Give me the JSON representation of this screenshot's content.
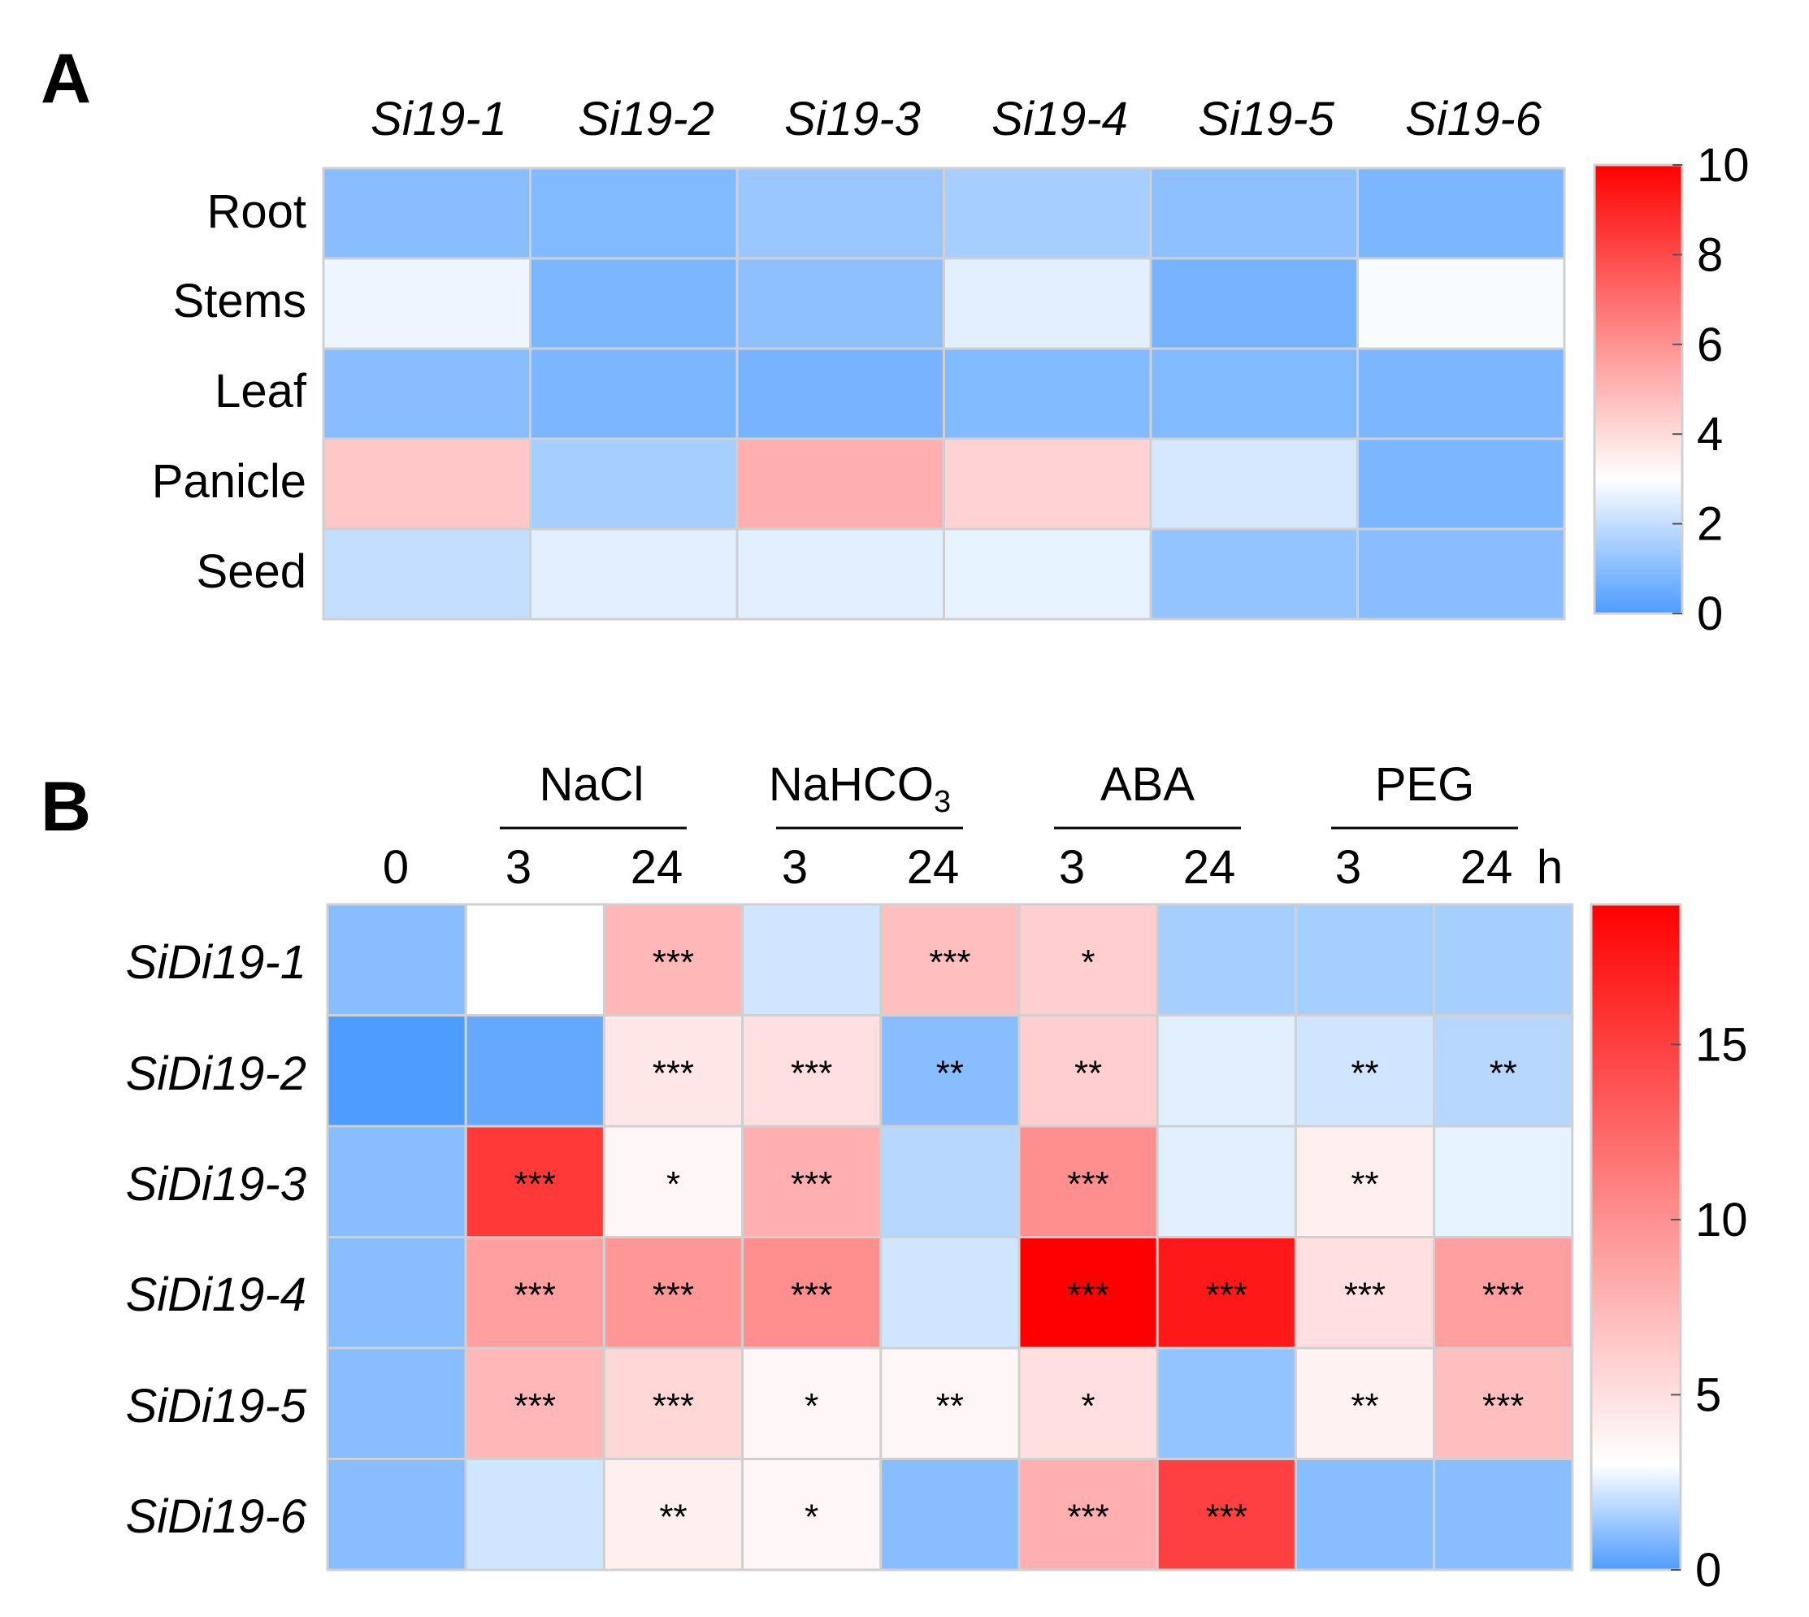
{
  "figure": {
    "panel_a_letter": "A",
    "panel_b_letter": "B"
  },
  "palette": {
    "low": "#4d9cff",
    "mid": "#ffffff",
    "high": "#ff0000",
    "grid": "#d0d0d0",
    "cbar_border": "#d0d0d0"
  },
  "chart_data": [
    {
      "id": "panel-a",
      "type": "heatmap",
      "title": "A",
      "columns": [
        "Si19-1",
        "Si19-2",
        "Si19-3",
        "Si19-4",
        "Si19-5",
        "Si19-6"
      ],
      "rows": [
        "Root",
        "Stems",
        "Leaf",
        "Panicle",
        "Seed"
      ],
      "values": [
        [
          1.0,
          0.9,
          1.3,
          1.5,
          1.1,
          0.8
        ],
        [
          2.7,
          0.8,
          1.1,
          2.5,
          0.7,
          2.9
        ],
        [
          1.0,
          0.8,
          0.7,
          0.9,
          0.9,
          0.8
        ],
        [
          4.5,
          1.5,
          5.2,
          4.2,
          2.3,
          0.8
        ],
        [
          2.0,
          2.5,
          2.5,
          2.6,
          1.2,
          1.0
        ]
      ],
      "colorbar": {
        "min": 0,
        "mid": 3,
        "max": 10,
        "ticks": [
          0,
          2,
          4,
          6,
          8,
          10
        ]
      }
    },
    {
      "id": "panel-b",
      "type": "heatmap",
      "title": "B",
      "groups": [
        "NaCl",
        "NaHCO3",
        "ABA",
        "PEG"
      ],
      "group_label_main": [
        "NaHCO"
      ],
      "group_label_sub": "3",
      "time_unit": "h",
      "columns": [
        "0",
        "3",
        "24",
        "3",
        "24",
        "3",
        "24",
        "3",
        "24"
      ],
      "rows": [
        "SiDi19-1",
        "SiDi19-2",
        "SiDi19-3",
        "SiDi19-4",
        "SiDi19-5",
        "SiDi19-6"
      ],
      "values": [
        [
          1.0,
          3.0,
          7.5,
          2.2,
          7.0,
          6.0,
          1.5,
          1.5,
          1.5
        ],
        [
          0.0,
          0.4,
          4.5,
          5.0,
          1.0,
          6.0,
          2.5,
          2.2,
          1.8
        ],
        [
          1.0,
          15.5,
          3.5,
          8.0,
          1.8,
          10.0,
          2.5,
          4.0,
          2.6
        ],
        [
          1.0,
          9.0,
          9.5,
          10.0,
          2.2,
          19.0,
          17.5,
          5.0,
          9.0
        ],
        [
          1.0,
          7.5,
          5.5,
          3.5,
          3.5,
          5.0,
          1.2,
          3.8,
          7.0
        ],
        [
          1.0,
          2.2,
          4.0,
          3.5,
          1.0,
          8.0,
          15.0,
          1.0,
          1.0
        ]
      ],
      "significance": [
        [
          "",
          "",
          "***",
          "",
          "***",
          "*",
          "",
          "",
          ""
        ],
        [
          "",
          "",
          "***",
          "***",
          "**",
          "**",
          "",
          "**",
          "**"
        ],
        [
          "",
          "***",
          "*",
          "***",
          "",
          "***",
          "",
          "**",
          ""
        ],
        [
          "",
          "***",
          "***",
          "***",
          "",
          "***",
          "***",
          "***",
          "***"
        ],
        [
          "",
          "***",
          "***",
          "*",
          "**",
          "*",
          "",
          "**",
          "***"
        ],
        [
          "",
          "",
          "**",
          "*",
          "",
          "***",
          "***",
          "",
          ""
        ]
      ],
      "colorbar": {
        "min": 0,
        "mid": 3,
        "max": 19,
        "ticks": [
          0,
          5,
          10,
          15
        ]
      }
    }
  ]
}
